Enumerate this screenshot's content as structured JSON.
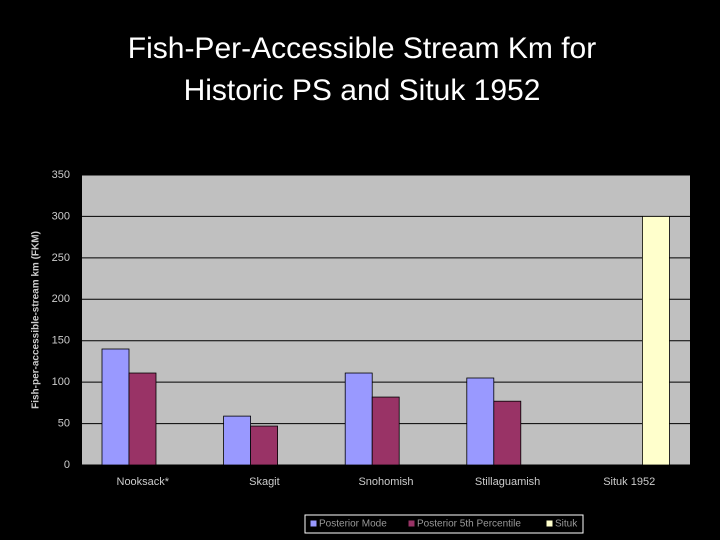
{
  "chart_data": {
    "type": "bar",
    "title": [
      "Fish-Per-Accessible Stream Km for",
      "Historic PS and Situk 1952"
    ],
    "y_label": "Fish-per-accessible-stream km (FKM)",
    "categories": [
      "Nooksack*",
      "Skagit",
      "Snohomish",
      "Stillaguamish",
      "Situk 1952"
    ],
    "series": [
      {
        "name": "Posterior Mode",
        "color": "#9999ff",
        "values": [
          140,
          59,
          111,
          105,
          null
        ]
      },
      {
        "name": "Posterior 5th Percentile",
        "color": "#993366",
        "values": [
          111,
          47,
          82,
          77,
          null
        ]
      },
      {
        "name": "Situk",
        "color": "#ffffcc",
        "values": [
          null,
          null,
          null,
          null,
          300
        ]
      }
    ],
    "ylim": [
      0,
      350
    ],
    "yticks": [
      0,
      50,
      100,
      150,
      200,
      250,
      300,
      350
    ],
    "grid": true,
    "legend": "bottom"
  }
}
